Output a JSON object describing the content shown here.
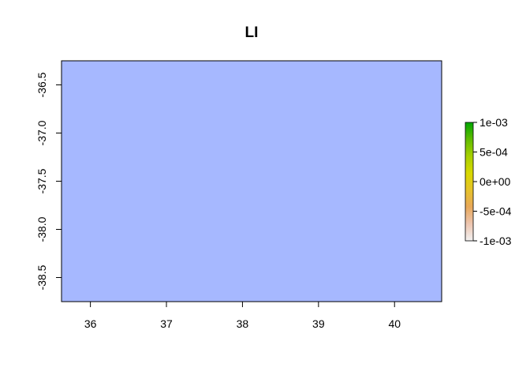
{
  "chart_data": {
    "type": "heatmap",
    "title": "LI",
    "xlabel": "",
    "ylabel": "",
    "xlim": [
      35.62,
      40.62
    ],
    "ylim": [
      -38.75,
      -36.25
    ],
    "x_ticks": [
      36,
      37,
      38,
      39,
      40
    ],
    "x_tick_labels": [
      "36",
      "37",
      "38",
      "39",
      "40"
    ],
    "y_ticks": [
      -36.5,
      -37.0,
      -37.5,
      -38.0,
      -38.5
    ],
    "y_tick_labels": [
      "-36.5",
      "-37.0",
      "-37.5",
      "-38.0",
      "-38.5"
    ],
    "raster": {
      "fill_color": "#A6B8FF",
      "note_value": "constant"
    },
    "legend": {
      "placement": "right",
      "range": [
        -0.001,
        0.001
      ],
      "ticks": [
        0.001,
        0.0005,
        0,
        -0.0005,
        -0.001
      ],
      "tick_labels": [
        "1e-03",
        "5e-04",
        "0e+00",
        "-5e-04",
        "-1e-03"
      ],
      "colors": [
        "#F2F2F2",
        "#EDC5B0",
        "#E8A85A",
        "#E6C22A",
        "#D8D800",
        "#A8D000",
        "#60BC00",
        "#00A600"
      ]
    },
    "grid": false
  }
}
